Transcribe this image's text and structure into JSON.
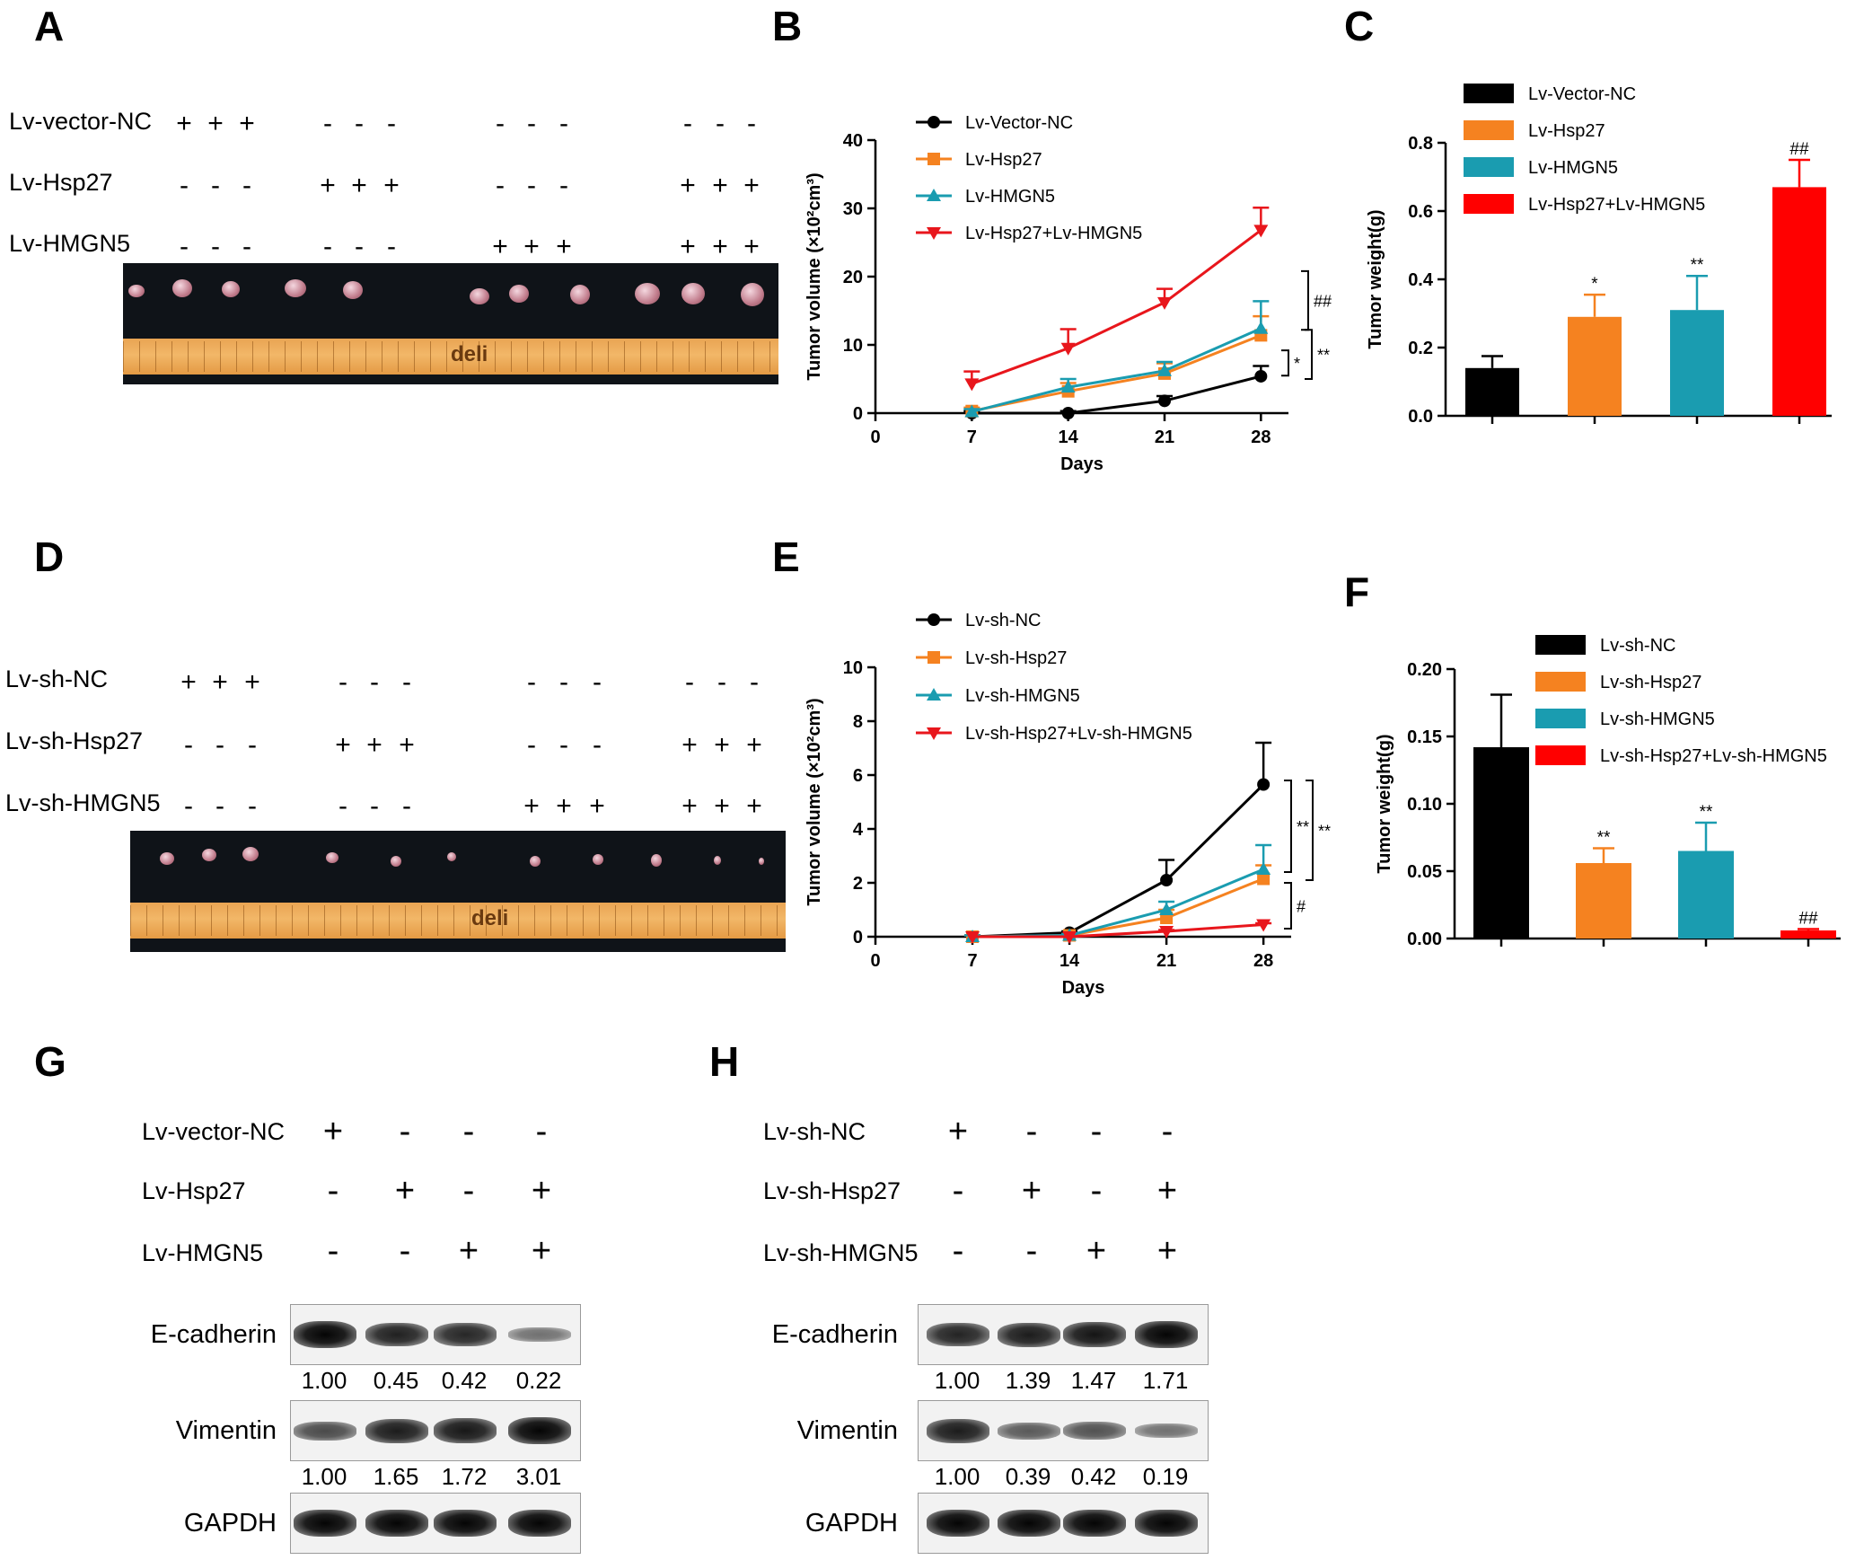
{
  "panels": {
    "A": "A",
    "B": "B",
    "C": "C",
    "D": "D",
    "E": "E",
    "F": "F",
    "G": "G",
    "H": "H"
  },
  "photo_a": {
    "conditions": [
      {
        "label": "Lv-vector-NC",
        "signs": [
          "+",
          "+",
          "+",
          "-",
          "-",
          "-",
          "-",
          "-",
          "-",
          "-",
          "-",
          "-"
        ]
      },
      {
        "label": "Lv-Hsp27",
        "signs": [
          "-",
          "-",
          "-",
          "+",
          "+",
          "+",
          "-",
          "-",
          "-",
          "+",
          "+",
          "+"
        ]
      },
      {
        "label": "Lv-HMGN5",
        "signs": [
          "-",
          "-",
          "-",
          "-",
          "-",
          "-",
          "+",
          "+",
          "+",
          "+",
          "+",
          "+"
        ]
      }
    ],
    "ruler_brand": "deli"
  },
  "photo_d": {
    "conditions": [
      {
        "label": "Lv-sh-NC",
        "signs": [
          "+",
          "+",
          "+",
          "-",
          "-",
          "-",
          "-",
          "-",
          "-",
          "-",
          "-",
          "-"
        ]
      },
      {
        "label": "Lv-sh-Hsp27",
        "signs": [
          "-",
          "-",
          "-",
          "+",
          "+",
          "+",
          "-",
          "-",
          "-",
          "+",
          "+",
          "+"
        ]
      },
      {
        "label": "Lv-sh-HMGN5",
        "signs": [
          "-",
          "-",
          "-",
          "-",
          "-",
          "-",
          "+",
          "+",
          "+",
          "+",
          "+",
          "+"
        ]
      }
    ],
    "ruler_brand": "deli"
  },
  "blot_g": {
    "conditions": [
      {
        "label": "Lv-vector-NC",
        "signs": [
          "+",
          "-",
          "-",
          "-"
        ]
      },
      {
        "label": "Lv-Hsp27",
        "signs": [
          "-",
          "+",
          "-",
          "+"
        ]
      },
      {
        "label": "Lv-HMGN5",
        "signs": [
          "-",
          "-",
          "+",
          "+"
        ]
      }
    ],
    "rows": [
      {
        "label": "E-cadherin",
        "values": [
          "1.00",
          "0.45",
          "0.42",
          "0.22"
        ],
        "intensity": [
          1.0,
          0.82,
          0.78,
          0.3
        ]
      },
      {
        "label": "Vimentin",
        "values": [
          "1.00",
          "1.65",
          "1.72",
          "3.01"
        ],
        "intensity": [
          0.55,
          0.85,
          0.88,
          1.0
        ]
      },
      {
        "label": "GAPDH",
        "values": [],
        "intensity": [
          1.0,
          1.0,
          1.0,
          1.0
        ]
      }
    ]
  },
  "blot_h": {
    "conditions": [
      {
        "label": "Lv-sh-NC",
        "signs": [
          "+",
          "-",
          "-",
          "-"
        ]
      },
      {
        "label": "Lv-sh-Hsp27",
        "signs": [
          "-",
          "+",
          "-",
          "+"
        ]
      },
      {
        "label": "Lv-sh-HMGN5",
        "signs": [
          "-",
          "-",
          "+",
          "+"
        ]
      }
    ],
    "rows": [
      {
        "label": "E-cadherin",
        "values": [
          "1.00",
          "1.39",
          "1.47",
          "1.71"
        ],
        "intensity": [
          0.8,
          0.85,
          0.9,
          1.0
        ]
      },
      {
        "label": "Vimentin",
        "values": [
          "1.00",
          "0.39",
          "0.42",
          "0.19"
        ],
        "intensity": [
          0.85,
          0.45,
          0.5,
          0.3
        ]
      },
      {
        "label": "GAPDH",
        "values": [],
        "intensity": [
          1.0,
          1.0,
          1.0,
          1.0
        ]
      }
    ]
  },
  "chart_data": [
    {
      "id": "B",
      "type": "line",
      "xlabel": "Days",
      "ylabel": "Tumor volume (×10²cm³)",
      "x": [
        7,
        14,
        21,
        28
      ],
      "xticks": [
        0,
        7,
        14,
        21,
        28
      ],
      "xlim": [
        0,
        30
      ],
      "yticks": [
        0,
        10,
        20,
        30,
        40
      ],
      "ylim": [
        0,
        40
      ],
      "legend_position": "top-left",
      "series": [
        {
          "name": "Lv-Vector-NC",
          "color": "#000000",
          "marker": "circle",
          "values": [
            0,
            0,
            1.8,
            5.4
          ],
          "errors": [
            0.3,
            0.3,
            0.7,
            1.5
          ]
        },
        {
          "name": "Lv-Hsp27",
          "color": "#f58220",
          "marker": "square",
          "values": [
            0.3,
            3.2,
            5.8,
            11.4
          ],
          "errors": [
            0.5,
            1.2,
            1.5,
            2.8
          ]
        },
        {
          "name": "Lv-HMGN5",
          "color": "#1a9cb0",
          "marker": "triangle-up",
          "values": [
            0.2,
            3.8,
            6.2,
            12.4
          ],
          "errors": [
            0.4,
            1.2,
            1.3,
            4.0
          ]
        },
        {
          "name": "Lv-Hsp27+Lv-HMGN5",
          "color": "#e8161c",
          "marker": "triangle-down",
          "values": [
            4.3,
            9.5,
            16.2,
            26.8
          ],
          "errors": [
            1.8,
            2.8,
            2.0,
            3.3
          ]
        }
      ],
      "annotations": [
        "##",
        "*",
        "**"
      ]
    },
    {
      "id": "C",
      "type": "bar",
      "ylabel": "Tumor weight(g)",
      "yticks": [
        0.0,
        0.2,
        0.4,
        0.6,
        0.8
      ],
      "ylim": [
        0,
        0.8
      ],
      "legend_position": "top-left",
      "categories": [
        "Lv-Vector-NC",
        "Lv-Hsp27",
        "Lv-HMGN5",
        "Lv-Hsp27+Lv-HMGN5"
      ],
      "colors": [
        "#000000",
        "#f58220",
        "#1a9cb0",
        "#ff0000"
      ],
      "values": [
        0.14,
        0.29,
        0.31,
        0.67
      ],
      "errors": [
        0.035,
        0.065,
        0.1,
        0.08
      ],
      "labels": [
        "",
        "*",
        "**",
        "##"
      ]
    },
    {
      "id": "E",
      "type": "line",
      "xlabel": "Days",
      "ylabel": "Tumor volume (×10²cm³)",
      "x": [
        7,
        14,
        21,
        28
      ],
      "xticks": [
        0,
        7,
        14,
        21,
        28
      ],
      "xlim": [
        0,
        30
      ],
      "yticks": [
        0,
        2,
        4,
        6,
        8,
        10
      ],
      "ylim": [
        0,
        10
      ],
      "legend_position": "top-left",
      "series": [
        {
          "name": "Lv-sh-NC",
          "color": "#000000",
          "marker": "circle",
          "values": [
            0,
            0.15,
            2.1,
            5.65
          ],
          "errors": [
            0.05,
            0.05,
            0.75,
            1.55
          ]
        },
        {
          "name": "Lv-sh-Hsp27",
          "color": "#f58220",
          "marker": "square",
          "values": [
            0,
            0.05,
            0.7,
            2.15
          ],
          "errors": [
            0.05,
            0.05,
            0.3,
            0.5
          ]
        },
        {
          "name": "Lv-sh-HMGN5",
          "color": "#1a9cb0",
          "marker": "triangle-up",
          "values": [
            0,
            0.05,
            1.0,
            2.5
          ],
          "errors": [
            0.05,
            0.05,
            0.3,
            0.9
          ]
        },
        {
          "name": "Lv-sh-Hsp27+Lv-sh-HMGN5",
          "color": "#e8161c",
          "marker": "triangle-down",
          "values": [
            0,
            0,
            0.2,
            0.45
          ],
          "errors": [
            0,
            0,
            0.05,
            0.05
          ]
        }
      ],
      "annotations": [
        "**",
        "**",
        "#"
      ]
    },
    {
      "id": "F",
      "type": "bar",
      "ylabel": "Tumor weight(g)",
      "yticks": [
        0.0,
        0.05,
        0.1,
        0.15,
        0.2
      ],
      "ytick_labels": [
        "0.00",
        "0.05",
        "0.10",
        "0.15",
        "0.20"
      ],
      "ylim": [
        0,
        0.2
      ],
      "legend_position": "top-left",
      "categories": [
        "Lv-sh-NC",
        "Lv-sh-Hsp27",
        "Lv-sh-HMGN5",
        "Lv-sh-Hsp27+Lv-sh-HMGN5"
      ],
      "colors": [
        "#000000",
        "#f58220",
        "#1a9cb0",
        "#ff0000"
      ],
      "values": [
        0.142,
        0.056,
        0.065,
        0.006
      ],
      "errors": [
        0.039,
        0.011,
        0.021,
        0.001
      ],
      "labels": [
        "",
        "**",
        "**",
        "##"
      ]
    }
  ]
}
